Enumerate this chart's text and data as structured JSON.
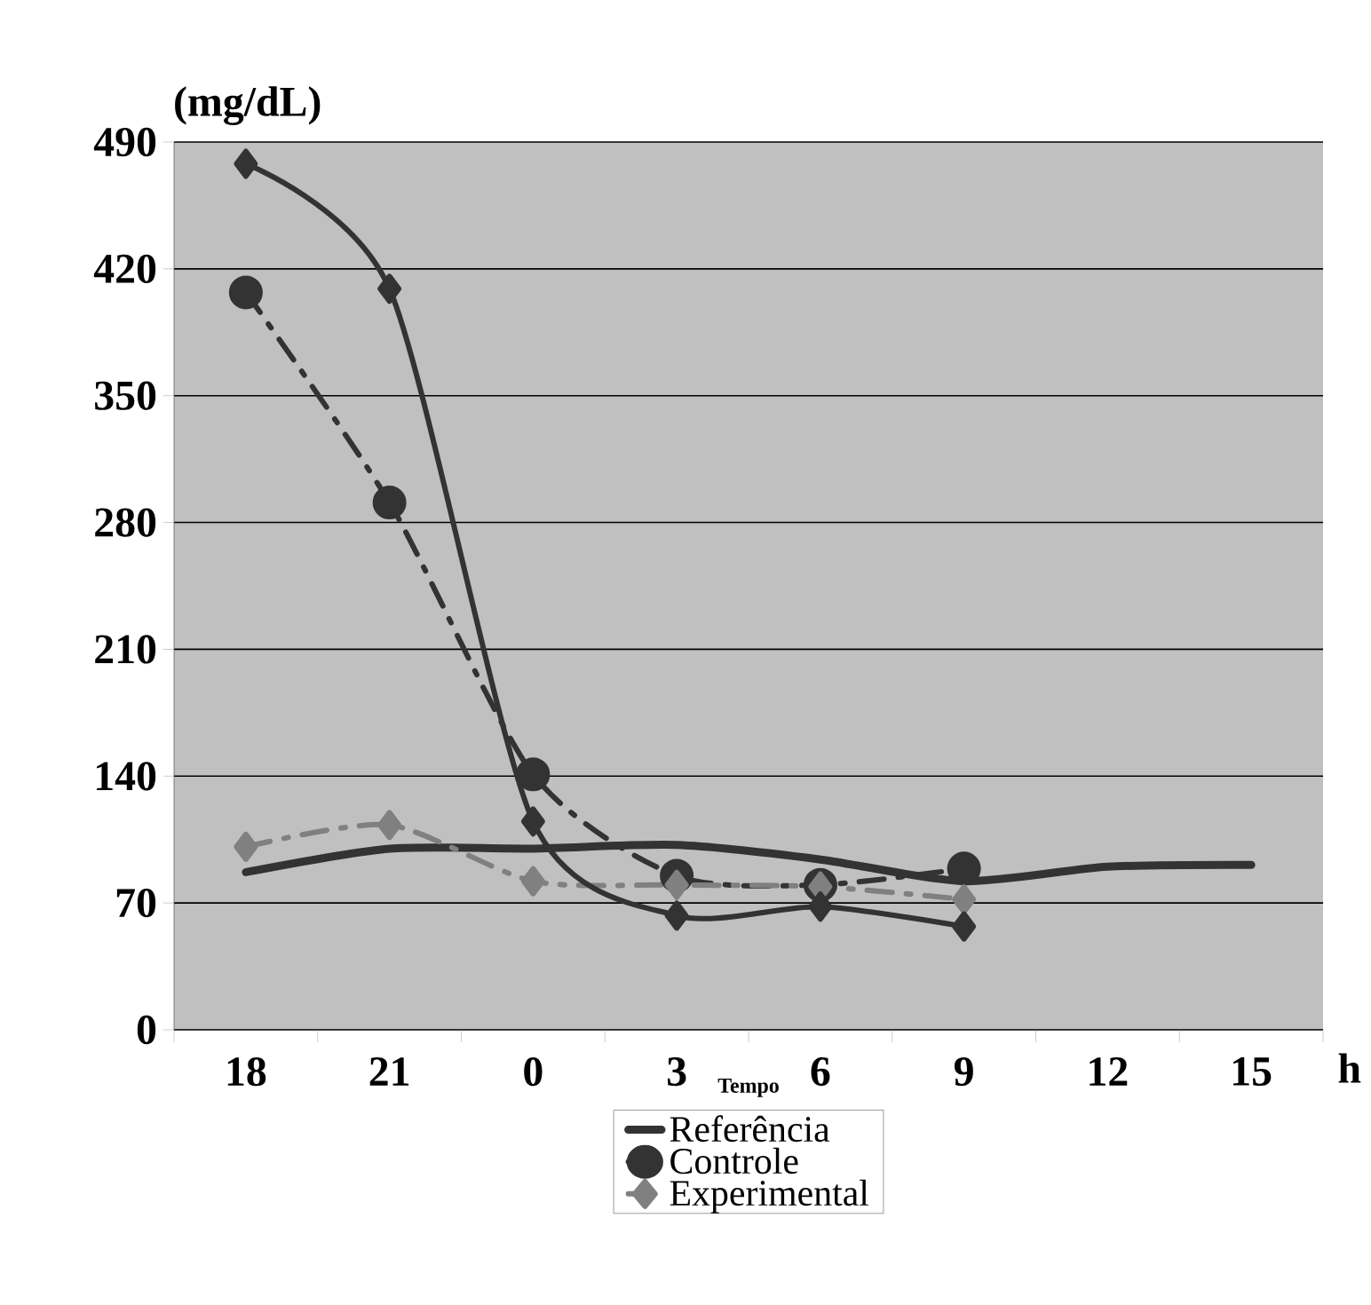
{
  "chart_data": {
    "type": "line",
    "ylabel": "(mg/dL)",
    "xlabel": "Tempo",
    "annotations": [
      "h"
    ],
    "categories": [
      "18",
      "21",
      "0",
      "3",
      "6",
      "9",
      "12",
      "15"
    ],
    "ylim": [
      0,
      490
    ],
    "yticks": [
      0,
      70,
      140,
      210,
      280,
      350,
      420,
      490
    ],
    "grid": "y",
    "legend": "bottom",
    "series": [
      {
        "name": "Referência",
        "color": "#333333",
        "marker": "none",
        "line_style": "solid",
        "values": [
          87,
          100,
          100,
          102,
          94,
          82,
          90,
          91
        ]
      },
      {
        "name": "Controle",
        "color": "#333333",
        "marker": "circle",
        "line_style": "dashed",
        "values": [
          407,
          291,
          141,
          85,
          80,
          89,
          null,
          null
        ]
      },
      {
        "name": "Experimental",
        "color": "#808080",
        "marker": "diamond",
        "line_style": "dashed",
        "values": [
          101,
          113,
          82,
          80,
          79,
          72,
          null,
          null
        ]
      },
      {
        "color": "#333333",
        "marker": "diamond",
        "line_style": "solid",
        "values": [
          478,
          409,
          115,
          63,
          68,
          57,
          null,
          null
        ]
      }
    ]
  }
}
